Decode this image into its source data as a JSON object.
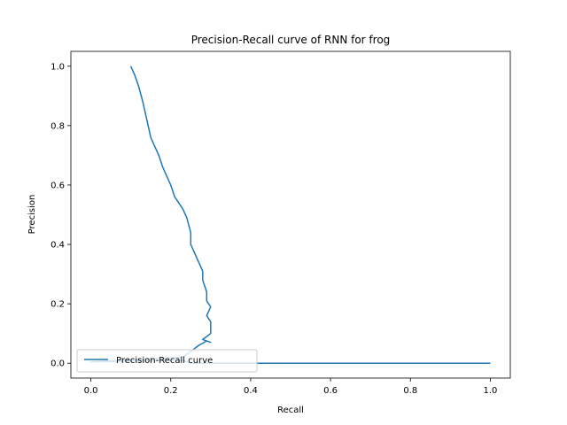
{
  "chart_data": {
    "type": "line",
    "title": "Precision-Recall curve of RNN for frog",
    "xlabel": "Recall",
    "ylabel": "Precision",
    "xlim": [
      -0.05,
      1.05
    ],
    "ylim": [
      -0.05,
      1.05
    ],
    "xticks": [
      0.0,
      0.2,
      0.4,
      0.6,
      0.8,
      1.0
    ],
    "xtick_labels": [
      "0.0",
      "0.2",
      "0.4",
      "0.6",
      "0.8",
      "1.0"
    ],
    "yticks": [
      0.0,
      0.2,
      0.4,
      0.6,
      0.8,
      1.0
    ],
    "ytick_labels": [
      "0.0",
      "0.2",
      "0.4",
      "0.6",
      "0.8",
      "1.0"
    ],
    "grid": false,
    "legend_position": "lower-left",
    "series": [
      {
        "name": "Precision-Recall curve",
        "color": "#1f77b4",
        "x": [
          1.0,
          0.28,
          0.25,
          0.23,
          0.0,
          0.23,
          0.25,
          0.27,
          0.29,
          0.3,
          0.28,
          0.3,
          0.3,
          0.29,
          0.3,
          0.29,
          0.29,
          0.28,
          0.28,
          0.27,
          0.26,
          0.25,
          0.25,
          0.24,
          0.23,
          0.21,
          0.2,
          0.18,
          0.17,
          0.15,
          0.14,
          0.13,
          0.12,
          0.11,
          0.1
        ],
        "y": [
          0.0,
          0.0,
          0.0,
          0.01,
          0.005,
          0.02,
          0.04,
          0.06,
          0.075,
          0.07,
          0.08,
          0.1,
          0.14,
          0.16,
          0.19,
          0.21,
          0.24,
          0.28,
          0.31,
          0.34,
          0.37,
          0.4,
          0.44,
          0.49,
          0.52,
          0.56,
          0.6,
          0.66,
          0.7,
          0.76,
          0.82,
          0.88,
          0.93,
          0.97,
          1.0
        ]
      }
    ]
  }
}
